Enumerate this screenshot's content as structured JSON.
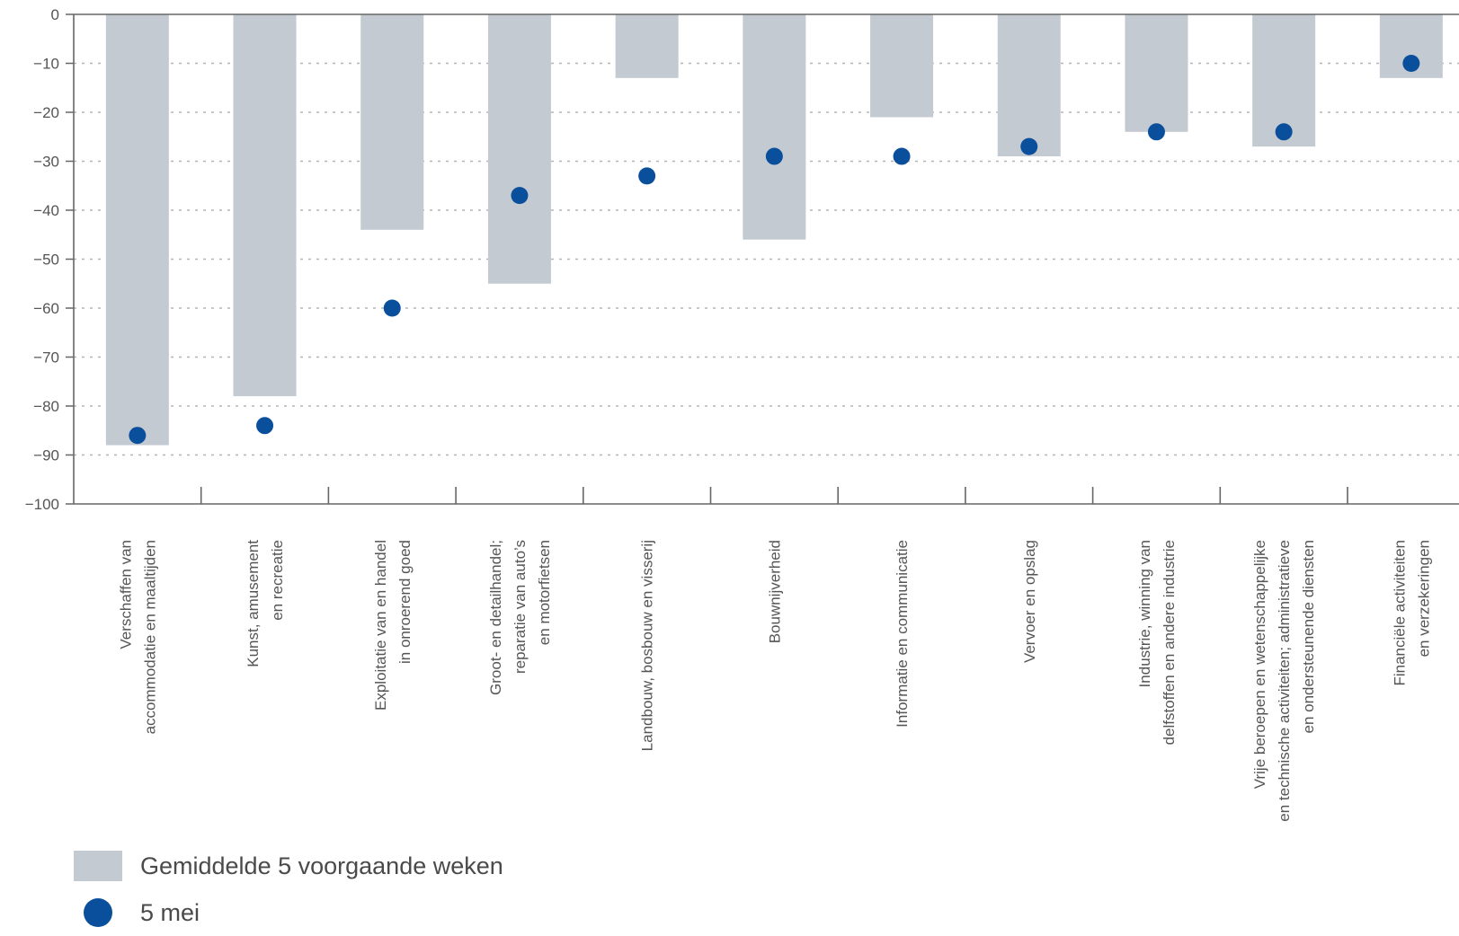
{
  "chart_data": {
    "type": "bar",
    "ylim": [
      -100,
      0
    ],
    "yticks": [
      0,
      -10,
      -20,
      -30,
      -40,
      -50,
      -60,
      -70,
      -80,
      -90,
      -100
    ],
    "grid": true,
    "legend_position": "bottom-left",
    "categories": [
      [
        "Verschaffen van",
        "accommodatie en maaltijden"
      ],
      [
        "Kunst, amusement",
        "en recreatie"
      ],
      [
        "Exploitatie van en handel",
        "in onroerend goed"
      ],
      [
        "Groot- en detailhandel;",
        "reparatie van auto’s",
        "en motorfietsen"
      ],
      [
        "Landbouw, bosbouw en visserij"
      ],
      [
        "Bouwnijverheid"
      ],
      [
        "Informatie en communicatie"
      ],
      [
        "Vervoer en opslag"
      ],
      [
        "Industrie, winning van",
        "delfstoffen en andere industrie"
      ],
      [
        "Vrije beroepen en wetenschappelijke",
        "en technische activiteiten; administratieve",
        "en ondersteunende diensten"
      ],
      [
        "Financiële activiteiten",
        "en verzekeringen"
      ]
    ],
    "series": [
      {
        "name": "Gemiddelde 5 voorgaande weken",
        "kind": "bar",
        "color": "#c4cad1",
        "values": [
          -88,
          -78,
          -44,
          -55,
          -13,
          -46,
          -21,
          -29,
          -24,
          -27,
          -13
        ]
      },
      {
        "name": "5 mei",
        "kind": "dot",
        "color": "#0a4f9c",
        "values": [
          -86,
          -84,
          -60,
          -37,
          -33,
          -29,
          -29,
          -27,
          -24,
          -24,
          -10
        ]
      }
    ]
  }
}
